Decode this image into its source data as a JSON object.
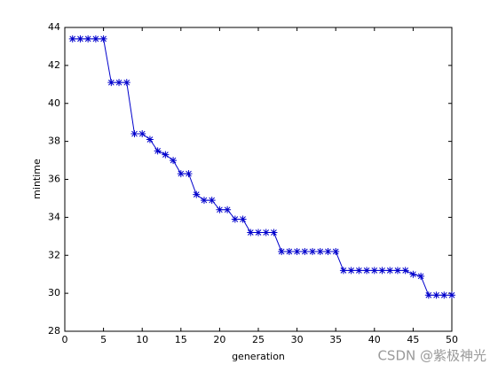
{
  "chart_data": {
    "type": "line",
    "x_label": "generation",
    "y_label": "mintime",
    "x": [
      1,
      2,
      3,
      4,
      5,
      6,
      7,
      8,
      9,
      10,
      11,
      12,
      13,
      14,
      15,
      16,
      17,
      18,
      19,
      20,
      21,
      22,
      23,
      24,
      25,
      26,
      27,
      28,
      29,
      30,
      31,
      32,
      33,
      34,
      35,
      36,
      37,
      38,
      39,
      40,
      41,
      42,
      43,
      44,
      45,
      46,
      47,
      48,
      49,
      50
    ],
    "series": [
      {
        "name": "mintime",
        "color": "#0000cc",
        "marker": "star",
        "values": [
          43.4,
          43.4,
          43.4,
          43.4,
          43.4,
          41.1,
          41.1,
          41.1,
          38.4,
          38.4,
          38.1,
          37.5,
          37.3,
          37.0,
          36.3,
          36.3,
          35.2,
          34.9,
          34.9,
          34.4,
          34.4,
          33.9,
          33.9,
          33.2,
          33.2,
          33.2,
          33.2,
          32.2,
          32.2,
          32.2,
          32.2,
          32.2,
          32.2,
          32.2,
          32.2,
          31.2,
          31.2,
          31.2,
          31.2,
          31.2,
          31.2,
          31.2,
          31.2,
          31.2,
          31.0,
          30.9,
          29.9,
          29.9,
          29.9,
          29.9
        ]
      }
    ],
    "xlim": [
      0,
      50
    ],
    "xticks": [
      0,
      5,
      10,
      15,
      20,
      25,
      30,
      35,
      40,
      45,
      50
    ],
    "ylim": [
      28,
      44
    ],
    "yticks": [
      28,
      30,
      32,
      34,
      36,
      38,
      40,
      42,
      44
    ],
    "watermark": "CSDN @紫极神光"
  }
}
